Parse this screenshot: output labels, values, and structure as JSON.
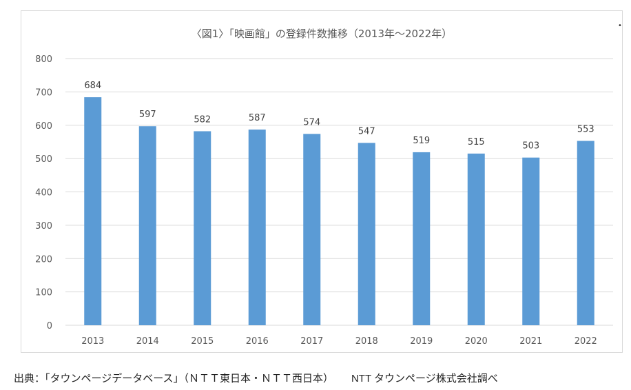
{
  "chart_data": {
    "type": "bar",
    "title": "〈図1〉「映画館」の登録件数推移（2013年～2022年）",
    "categories": [
      "2013",
      "2014",
      "2015",
      "2016",
      "2017",
      "2018",
      "2019",
      "2020",
      "2021",
      "2022"
    ],
    "values": [
      684,
      597,
      582,
      587,
      574,
      547,
      519,
      515,
      503,
      553
    ],
    "data_labels": [
      "684",
      "597",
      "582",
      "587",
      "574",
      "547",
      "519",
      "515",
      "503",
      "553"
    ],
    "ylim": [
      0,
      800
    ],
    "yticks": [
      "0",
      "100",
      "200",
      "300",
      "400",
      "500",
      "600",
      "700",
      "800"
    ],
    "xlabel": "",
    "ylabel": "",
    "grid": true,
    "legend": "none",
    "bar_color": "#5b9bd5",
    "grid_color": "#d9d9d9",
    "text_color": "#595959"
  },
  "source": {
    "text": "出典：「タウンページデータベース」（ＮＴＴ東日本・ＮＴＴ西日本）",
    "credit": "NTT タウンページ株式会社調べ"
  }
}
